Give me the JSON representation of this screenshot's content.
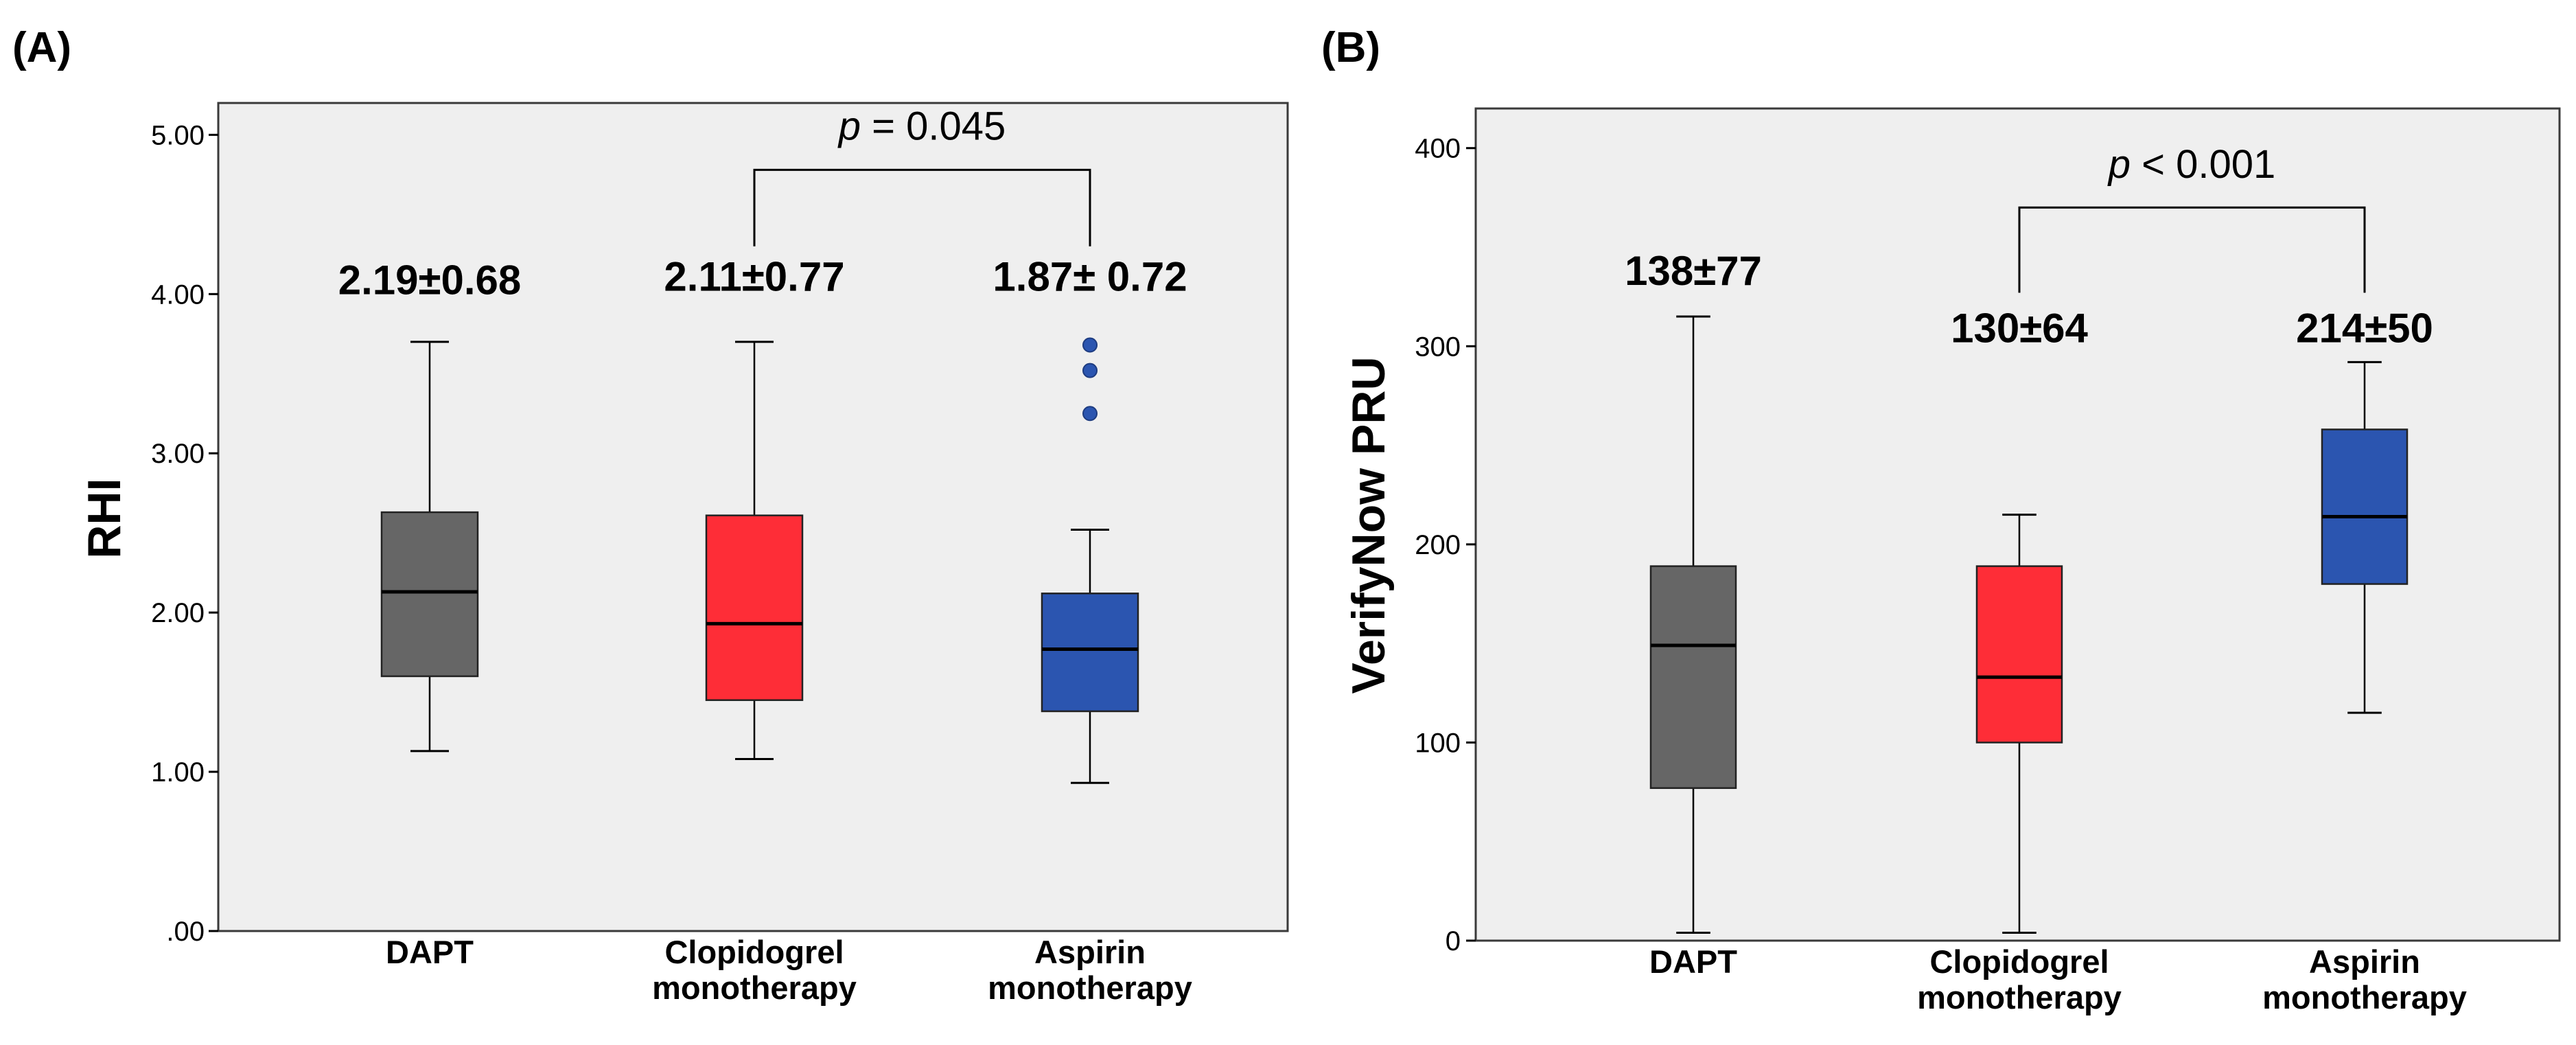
{
  "chart_data": [
    {
      "panel_label": "(A)",
      "type": "box",
      "ylabel": "RHI",
      "ylim": [
        0,
        5.2
      ],
      "yticks": [
        0,
        1,
        2,
        3,
        4,
        5
      ],
      "ytick_labels": [
        ".00",
        "1.00",
        "2.00",
        "3.00",
        "4.00",
        "5.00"
      ],
      "grid": false,
      "categories": [
        {
          "lines": [
            "DAPT"
          ],
          "color": "#666666",
          "whisker_low": 1.13,
          "q1": 1.6,
          "median": 2.13,
          "q3": 2.63,
          "whisker_high": 3.7,
          "outliers": [],
          "summary": "2.19±0.68",
          "summary_y": 4.0
        },
        {
          "lines": [
            "Clopidogrel",
            "monotherapy"
          ],
          "color": "#fe2d37",
          "whisker_low": 1.08,
          "q1": 1.45,
          "median": 1.93,
          "q3": 2.61,
          "whisker_high": 3.7,
          "outliers": [],
          "summary": "2.11±0.77",
          "summary_y": 4.02
        },
        {
          "lines": [
            "Aspirin",
            "monotherapy"
          ],
          "color": "#2b55b0",
          "whisker_low": 0.93,
          "q1": 1.38,
          "median": 1.77,
          "q3": 2.12,
          "whisker_high": 2.52,
          "outliers": [
            3.25,
            3.52,
            3.68
          ],
          "summary": "1.87± 0.72",
          "summary_y": 4.02
        }
      ],
      "bracket": {
        "from": 1,
        "to": 2,
        "y": 4.78,
        "leg_end": 4.3,
        "label_prefix": "p",
        "label_rest": " = 0.045",
        "label_y": 4.97
      }
    },
    {
      "panel_label": "(B)",
      "type": "box",
      "ylabel": "VerifyNow PRU",
      "ylim": [
        0,
        420
      ],
      "yticks": [
        0,
        100,
        200,
        300,
        400
      ],
      "ytick_labels": [
        "0",
        "100",
        "200",
        "300",
        "400"
      ],
      "grid": false,
      "categories": [
        {
          "lines": [
            "DAPT"
          ],
          "color": "#666666",
          "whisker_low": 4,
          "q1": 77,
          "median": 149,
          "q3": 189,
          "whisker_high": 315,
          "outliers": [],
          "summary": "138±77",
          "summary_y": 331
        },
        {
          "lines": [
            "Clopidogrel",
            "monotherapy"
          ],
          "color": "#fe2d37",
          "whisker_low": 4,
          "q1": 100,
          "median": 133,
          "q3": 189,
          "whisker_high": 215,
          "outliers": [],
          "summary": "130±64",
          "summary_y": 302
        },
        {
          "lines": [
            "Aspirin",
            "monotherapy"
          ],
          "color": "#2b55b0",
          "whisker_low": 115,
          "q1": 180,
          "median": 214,
          "q3": 258,
          "whisker_high": 292,
          "outliers": [],
          "summary": "214±50",
          "summary_y": 302
        }
      ],
      "bracket": {
        "from": 1,
        "to": 2,
        "y": 370,
        "leg_end": 327,
        "label_prefix": "p",
        "label_rest": " < 0.001",
        "label_y": 385
      }
    }
  ]
}
